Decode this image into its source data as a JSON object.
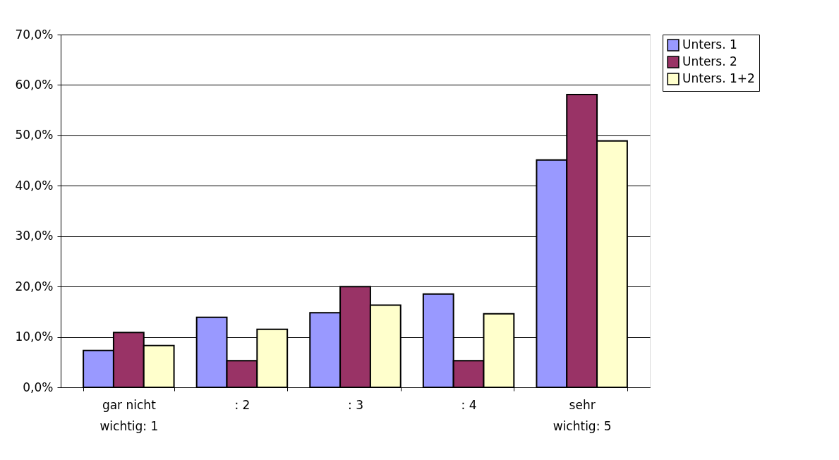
{
  "chart_data": {
    "type": "bar",
    "categories": [
      "gar nicht\nwichtig: 1",
      ": 2",
      ": 3",
      ": 4",
      "sehr\nwichtig: 5"
    ],
    "series": [
      {
        "name": "Unters. 1",
        "color": "#9999ff",
        "values": [
          7.3,
          13.9,
          14.8,
          18.5,
          45.1
        ]
      },
      {
        "name": "Unters. 2",
        "color": "#993366",
        "values": [
          10.9,
          5.3,
          20.0,
          5.3,
          58.1
        ]
      },
      {
        "name": "Unters. 1+2",
        "color": "#ffffcc",
        "values": [
          8.3,
          11.5,
          16.3,
          14.6,
          48.9
        ]
      }
    ],
    "ylim": [
      0,
      70
    ],
    "yticks": [
      {
        "value": 0,
        "label": "0,0%"
      },
      {
        "value": 10,
        "label": "10,0%"
      },
      {
        "value": 20,
        "label": "20,0%"
      },
      {
        "value": 30,
        "label": "30,0%"
      },
      {
        "value": 40,
        "label": "40,0%"
      },
      {
        "value": 50,
        "label": "50,0%"
      },
      {
        "value": 60,
        "label": "60,0%"
      },
      {
        "value": 70,
        "label": "70,0%"
      }
    ],
    "grid": "y",
    "legend": "right"
  }
}
